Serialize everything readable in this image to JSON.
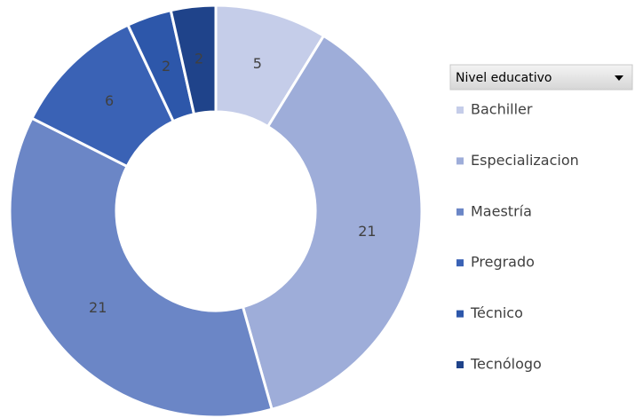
{
  "chart_data": {
    "type": "donut",
    "legend_title": "Nivel educativo",
    "categories": [
      "Bachiller",
      "Especializacion",
      "Maestría",
      "Pregrado",
      "Técnico",
      "Tecnólogo"
    ],
    "values": [
      5,
      21,
      21,
      6,
      2,
      2
    ],
    "colors": [
      "#c5cde9",
      "#9eadd9",
      "#6b86c6",
      "#3a62b5",
      "#2d57aa",
      "#1f438a"
    ],
    "legend": "right"
  }
}
